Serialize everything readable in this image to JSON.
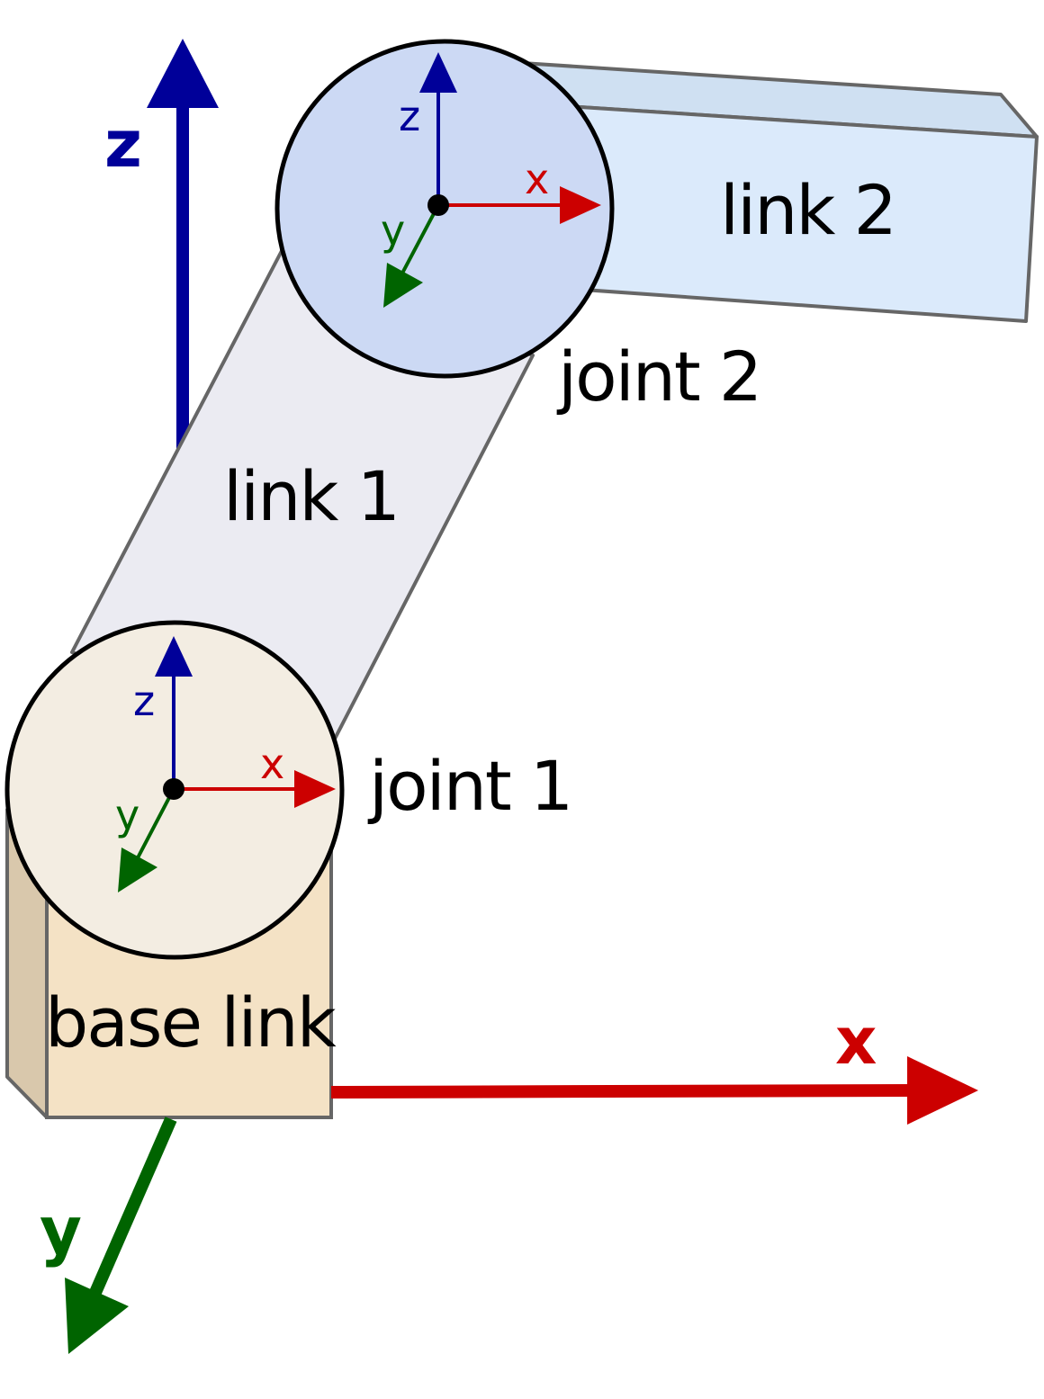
{
  "links": {
    "base": "base link",
    "link1": "link 1",
    "link2": "link 2"
  },
  "joints": {
    "joint1": "joint 1",
    "joint2": "joint 2"
  },
  "world_axes": {
    "x": "x",
    "y": "y",
    "z": "z"
  },
  "joint1_axes": {
    "x": "x",
    "y": "y",
    "z": "z"
  },
  "joint2_axes": {
    "x": "x",
    "y": "y",
    "z": "z"
  },
  "colors": {
    "x_axis": "#cc0000",
    "y_axis": "#006400",
    "z_axis": "#000099",
    "base_front": "#f4e2c5",
    "base_side": "#d9c8ac",
    "link1_fill": "#ebebf2",
    "link2_front": "#dbeafb",
    "link2_top": "#cfe0f2",
    "joint1_fill": "#f3ede2",
    "joint2_fill": "#ccd9f4",
    "outline": "#666666"
  }
}
